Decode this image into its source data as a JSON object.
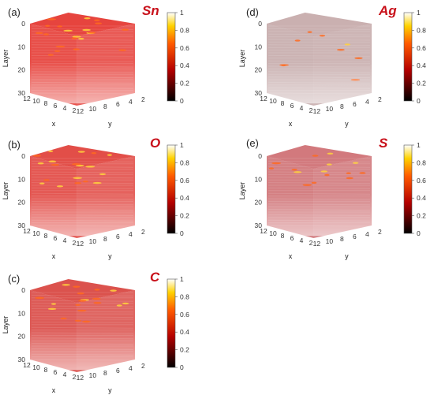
{
  "colorbar": {
    "ticks": [
      "1",
      "0.8",
      "0.6",
      "0.4",
      "0.2",
      "0"
    ]
  },
  "axes": {
    "z_label": "Layer",
    "x_label": "x",
    "y_label": "y",
    "z_ticks": [
      "0",
      "10",
      "20",
      "30"
    ],
    "x_ticks": [
      "12",
      "10",
      "8",
      "6",
      "4",
      "2"
    ],
    "y_ticks": [
      "12",
      "10",
      "8",
      "6",
      "4",
      "2"
    ]
  },
  "panels": [
    {
      "label": "(a)",
      "element": "Sn",
      "color": "#e11b14",
      "intensity": 0.95
    },
    {
      "label": "(b)",
      "element": "O",
      "color": "#d9160f",
      "intensity": 0.85
    },
    {
      "label": "(c)",
      "element": "C",
      "color": "#cf160f",
      "intensity": 0.82
    },
    {
      "label": "(d)",
      "element": "Ag",
      "color": "#7a3a3a",
      "intensity": 0.25
    },
    {
      "label": "(e)",
      "element": "S",
      "color": "#b5242a",
      "intensity": 0.6
    }
  ]
}
